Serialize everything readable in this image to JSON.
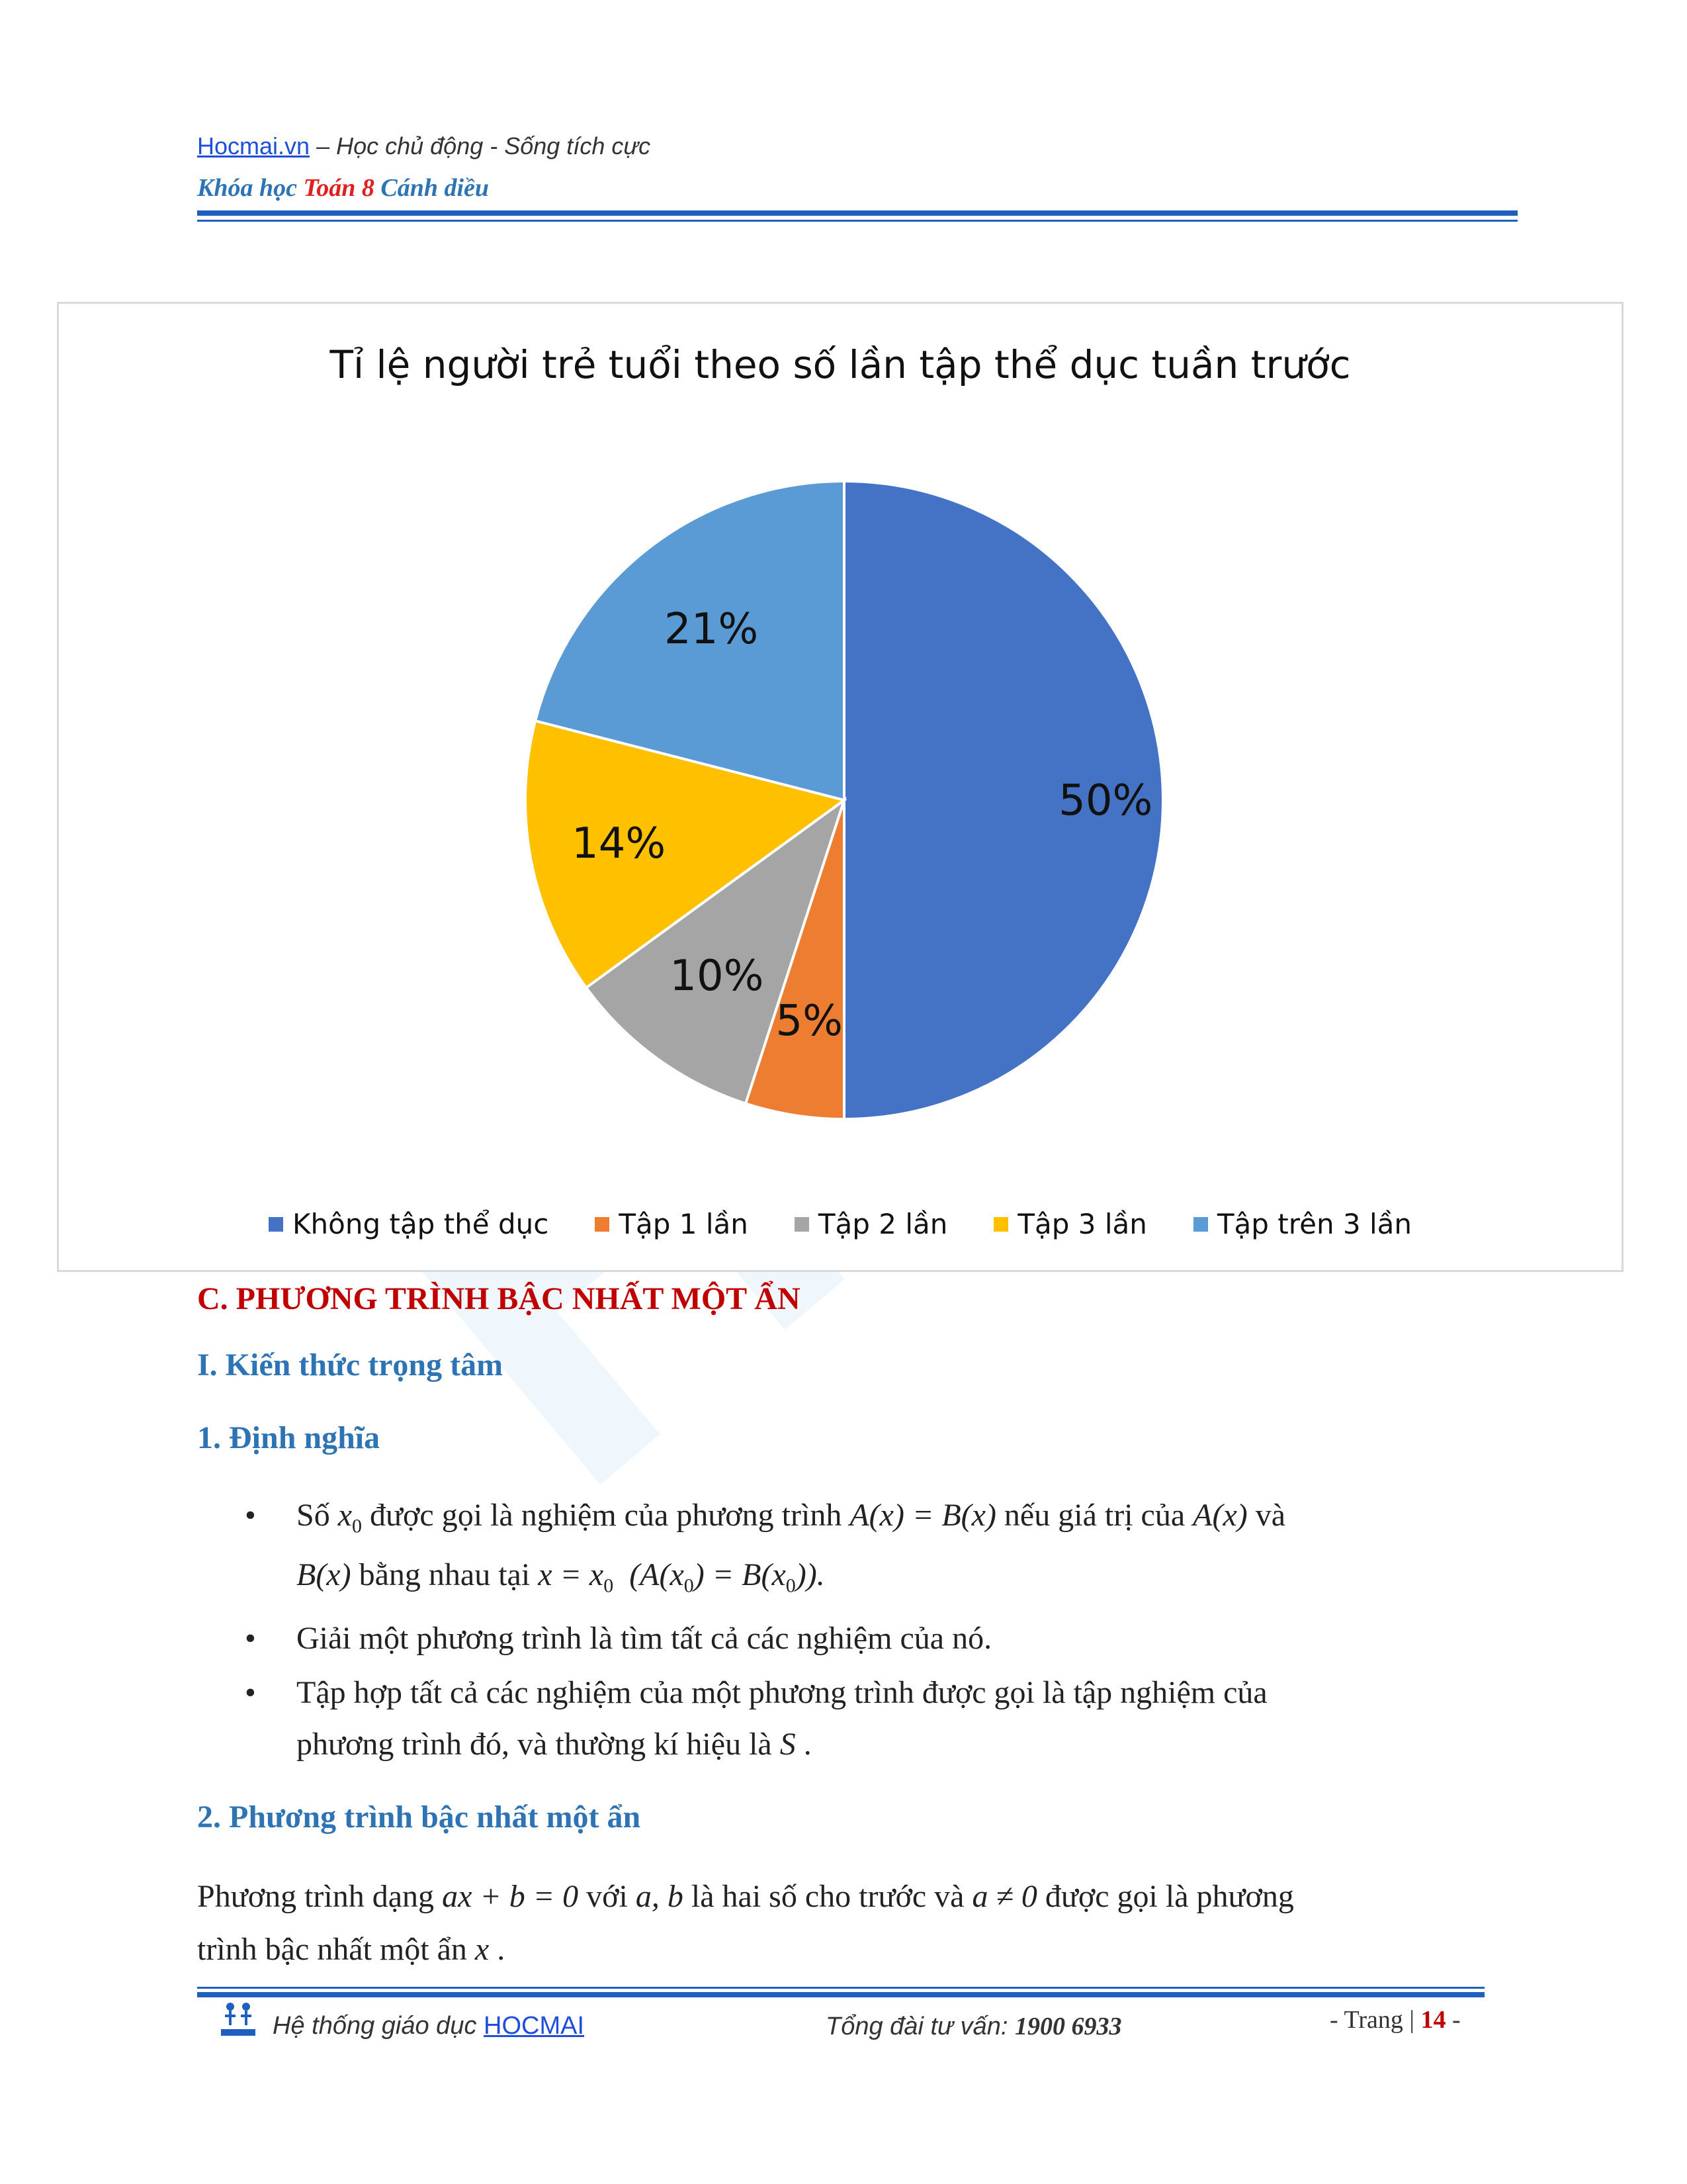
{
  "header": {
    "site": "Hocmai.vn",
    "tagline": " – Học chủ động - Sống tích cực",
    "course_prefix": "Khóa học ",
    "course_subject": "Toán 8",
    "course_suffix": " Cánh diều"
  },
  "watermark": "HOC",
  "chart_data": {
    "type": "pie",
    "title": "Tỉ lệ người trẻ tuổi theo số lần tập thể dục tuần trước",
    "categories": [
      "Không tập thể dục",
      "Tập 1 lần",
      "Tập 2 lần",
      "Tập 3 lần",
      "Tập trên 3 lần"
    ],
    "values": [
      50,
      5,
      10,
      14,
      21
    ],
    "labels": [
      "50%",
      "5%",
      "10%",
      "14%",
      "21%"
    ],
    "colors": [
      "#4472c4",
      "#ed7d31",
      "#a5a5a5",
      "#ffc000",
      "#5b9bd5"
    ],
    "legend": "bottom"
  },
  "section": {
    "title": "C. PHƯƠNG TRÌNH BẬC NHẤT MỘT ẨN",
    "sub1": "I. Kiến thức trọng tâm",
    "h1": "1.  Định nghĩa",
    "b1_a": "Số ",
    "b1_x0": "x",
    "b1_sub0": "0",
    "b1_b": " được gọi là nghiệm của phương trình ",
    "b1_eq": "A(x) = B(x)",
    "b1_c": " nếu giá trị của ",
    "b1_ax": "A(x)",
    "b1_d": " và",
    "b1_bx": "B(x)",
    "b1_e": " bằng nhau tại ",
    "b1_eq2": "x = x",
    "b1_eq3": "(A(x",
    "b1_eq4": ") = B(x",
    "b1_eq5": ")).",
    "b2": "Giải một phương trình là tìm tất cả các nghiệm của nó.",
    "b3_l1": "Tập hợp tất cả các nghiệm của một phương trình được gọi là tập nghiệm của",
    "b3_l2": "phương trình đó, và thường kí hiệu là ",
    "b3_s": "S",
    "b3_end": " .",
    "h2": "2.  Phương trình bậc nhất một ẩn",
    "p_l1a": "Phương trình dạng ",
    "p_eq": "ax + b = 0",
    "p_l1b": " với ",
    "p_ab": "a, b",
    "p_l1c": " là hai số cho trước và ",
    "p_neq": "a ≠ 0",
    "p_l1d": " được gọi là phương",
    "p_l2a": "trình bậc nhất một ẩn ",
    "p_x": "x",
    "p_l2b": " ."
  },
  "footer": {
    "left_text": "Hệ thống giáo dục ",
    "left_link": "HOCMAI",
    "mid_text": "Tổng đài tư vấn: ",
    "mid_phone": "1900 6933",
    "page_prefix": "- Trang | ",
    "page_num": "14",
    "page_suffix": " -"
  }
}
